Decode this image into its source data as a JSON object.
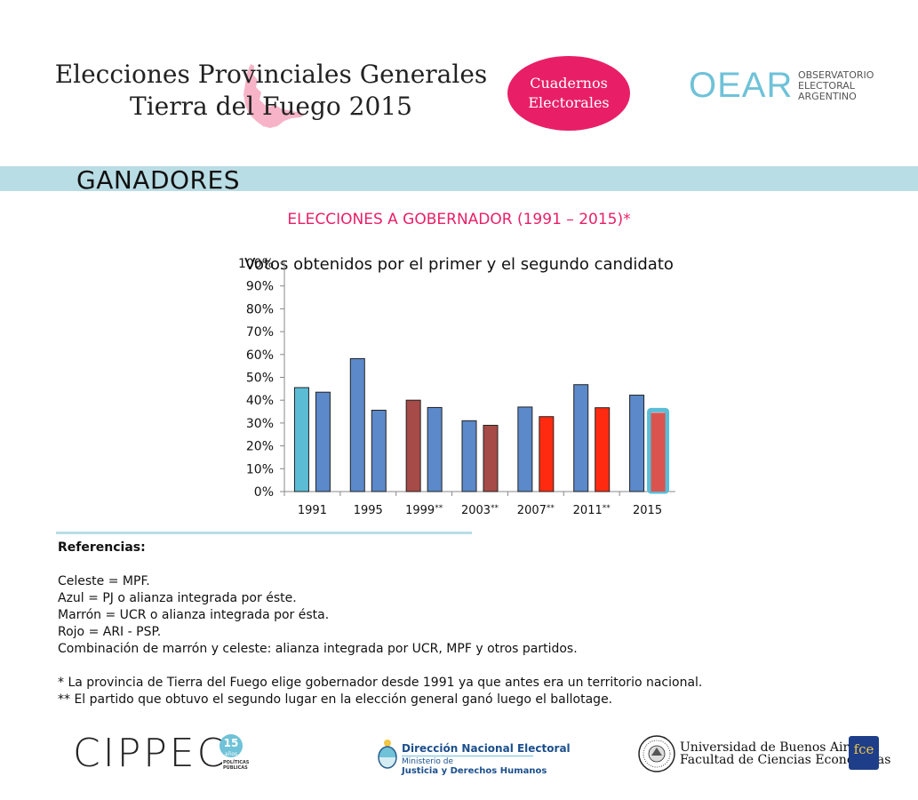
{
  "header": {
    "title_line1": "Elecciones Provinciales Generales",
    "title_line2": "Tierra del Fuego 2015",
    "badge_line1": "Cuadernos",
    "badge_line2": "Electorales",
    "oear_logo": "OEAR",
    "oear_line1": "OBSERVATORIO",
    "oear_line2": "ELECTORAL",
    "oear_line3": "ARGENTINO"
  },
  "section": {
    "title": "GANADORES"
  },
  "chart_data": {
    "type": "bar",
    "title": "ELECCIONES A GOBERNADOR (1991 – 2015)*",
    "subtitle": "Votos obtenidos por el primer y el segundo candidato",
    "xlabel": "",
    "ylabel": "",
    "ylim": [
      0,
      100
    ],
    "yticks": [
      "0%",
      "10%",
      "20%",
      "30%",
      "40%",
      "50%",
      "60%",
      "70%",
      "80%",
      "90%",
      "100%"
    ],
    "categories": [
      "1991",
      "1995",
      "1999**",
      "2003**",
      "2007**",
      "2011**",
      "2015"
    ],
    "series": [
      {
        "name": "Primer candidato",
        "values": [
          45.5,
          58.2,
          40,
          31,
          37,
          46.8,
          42.2
        ],
        "colors": [
          "#5bbcd6",
          "#5b89c9",
          "#a64b47",
          "#5b89c9",
          "#5b89c9",
          "#5b89c9",
          "#5b89c9"
        ]
      },
      {
        "name": "Segundo candidato",
        "values": [
          43.5,
          35.6,
          36.8,
          29,
          32.8,
          36.7,
          34.5
        ],
        "colors": [
          "#5b89c9",
          "#5b89c9",
          "#5b89c9",
          "#a64b47",
          "#ff2a10",
          "#ff2a10",
          "#d9534f"
        ],
        "outline_last": "#5bbcd6"
      }
    ],
    "grid": false,
    "legend": "none"
  },
  "references": {
    "heading": "Referencias:",
    "lines": [
      "Celeste = MPF.",
      "Azul = PJ o alianza integrada por éste.",
      "Marrón = UCR o alianza integrada por ésta.",
      "Rojo = ARI - PSP.",
      "Combinación de marrón y celeste: alianza integrada por UCR, MPF y otros partidos."
    ],
    "notes": [
      "* La provincia de Tierra del Fuego elige gobernador desde 1991 ya que antes era un territorio nacional.",
      "** El partido que obtuvo el segundo lugar en la elección general ganó luego el ballotage."
    ]
  },
  "footer": {
    "cippec": "CIPPEC",
    "cippec_badge_num": "15",
    "cippec_badge_txt": "años",
    "cippec_tag1": "POLÍTICAS",
    "cippec_tag2": "PÚBLICAS",
    "dne_line1": "Dirección Nacional Electoral",
    "dne_line2": "Ministerio de",
    "dne_line3": "Justicia y Derechos Humanos",
    "uba_line1": "Universidad de Buenos Aires",
    "uba_line2": "Facultad de Ciencias Económicas",
    "fce": "fce"
  },
  "colors": {
    "pink": "#e81f67",
    "celeste": "#5bbcd6",
    "azul": "#5b89c9",
    "marron": "#a64b47",
    "rojo": "#ff2a10",
    "band": "#b9dde5"
  }
}
